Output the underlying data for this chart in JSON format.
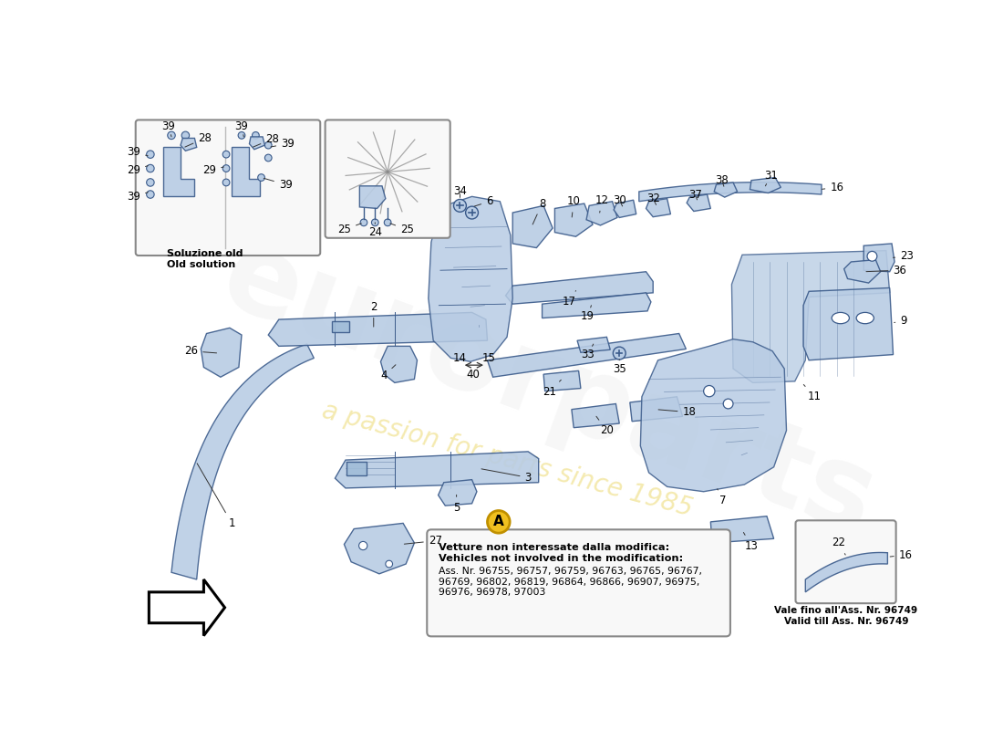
{
  "bg": "#ffffff",
  "pc": "#b8cce4",
  "pco": "#3a5a8a",
  "tc": "#000000",
  "note_bold": "Vetture non interessate dalla modifica:\nVehicles not involved in the modification:",
  "note_normal": "Ass. Nr. 96755, 96757, 96759, 96763, 96765, 96767,\n96769, 96802, 96819, 96864, 96866, 96907, 96975,\n96976, 96978, 97003",
  "note2": "Vale fino all'Ass. Nr. 96749\nValid till Ass. Nr. 96749",
  "inset1_label": "Soluzione old\nOld solution",
  "ann_A_fill": "#f0c020",
  "ann_A_edge": "#c09000",
  "wm_color": "#d8d8d8",
  "wm_italic_color": "#e8d060",
  "fs": 8.5,
  "fs_sm": 7.5
}
